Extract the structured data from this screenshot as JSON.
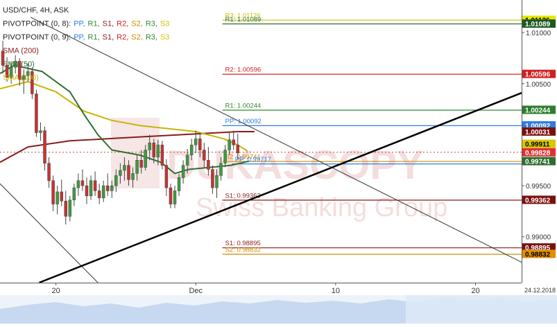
{
  "chart_data": {
    "type": "candlestick",
    "title": "USD/CHF, 4H, ASK",
    "legend": [
      {
        "name": "PIVOTPOINT (0, 8):",
        "items": [
          {
            "label": "PP,",
            "color": "#2d7ee0"
          },
          {
            "label": "R1,",
            "color": "#2e8b2e"
          },
          {
            "label": "S1,",
            "color": "#8b1a1a"
          },
          {
            "label": "R2,",
            "color": "#d02020"
          },
          {
            "label": "S2,",
            "color": "#d08a00"
          },
          {
            "label": "R3,",
            "color": "#2e8b2e"
          },
          {
            "label": "S3",
            "color": "#d6c000"
          }
        ]
      },
      {
        "name": "PIVOTPOINT (0, 9):",
        "items": [
          {
            "label": "PP,",
            "color": "#2d7ee0"
          },
          {
            "label": "R1,",
            "color": "#2e8b2e"
          },
          {
            "label": "S1,",
            "color": "#8b1a1a"
          },
          {
            "label": "R2,",
            "color": "#d02020"
          },
          {
            "label": "S2,",
            "color": "#d08a00"
          },
          {
            "label": "R3,",
            "color": "#2e8b2e"
          },
          {
            "label": "S3",
            "color": "#d6c000"
          }
        ]
      },
      {
        "name": "SMA (200)",
        "color": "#8b1a1a"
      },
      {
        "name": "SMA (50)",
        "color": "#2e6e2e"
      },
      {
        "name": "SMA (100)",
        "color": "#c8b400"
      }
    ],
    "watermark": {
      "line1": "DUKASCOPY",
      "line2": "Swiss Banking Group"
    },
    "x_ticks": [
      {
        "label": "20",
        "day": 20
      },
      {
        "label": "Dec",
        "day": 30
      },
      {
        "label": "10",
        "day": 40
      },
      {
        "label": "20",
        "day": 50
      }
    ],
    "x_range": [
      16,
      53.3
    ],
    "x_end_date": "24.12.2018",
    "y_range": [
      0.9855,
      1.0132
    ],
    "y_ticks": [
      {
        "label": "1.01000",
        "value": 1.01
      },
      {
        "label": "1.00500",
        "value": 1.005
      },
      {
        "label": "0.99500",
        "value": 0.995
      },
      {
        "label": "0.99000",
        "value": 0.99
      }
    ],
    "pivot_levels": [
      {
        "label": "R3: 1.01126",
        "value": 1.01126,
        "color": "#c8c000",
        "x_start": 31.9
      },
      {
        "label": "R1: 1.01089",
        "value": 1.01089,
        "color": "#2e6e2e",
        "x_start": 31.9
      },
      {
        "label": "R2: 1.00596",
        "value": 1.00596,
        "color": "#d02020",
        "x_start": 31.9
      },
      {
        "label": "R1: 1.00244",
        "value": 1.00244,
        "color": "#2e8b2e",
        "x_start": 31.9
      },
      {
        "label": "PP: 1.00092",
        "value": 1.00092,
        "color": "#2d7ee0",
        "x_start": 31.9
      },
      {
        "label": "S2: 0.99741",
        "value": 0.99741,
        "color": "#d08a00",
        "x_start": 31.9
      },
      {
        "label": "PP: 0.99717",
        "value": 0.99717,
        "color": "#2d7ee0",
        "x_start": 32.6
      },
      {
        "label": "S1: 0.99362",
        "value": 0.99362,
        "color": "#8b1a1a",
        "x_start": 31.9
      },
      {
        "label": "S1: 0.98895",
        "value": 0.98895,
        "color": "#8b1a1a",
        "x_start": 31.9
      },
      {
        "label": "S2: 0.98832",
        "value": 0.98832,
        "color": "#d08a00",
        "x_start": 31.9
      }
    ],
    "price_badges": [
      {
        "label": "1.01126",
        "value": 1.01126,
        "bg": "#e6e600",
        "fg": "#000000"
      },
      {
        "label": "1.01089",
        "value": 1.01089,
        "bg": "#1f5a1f",
        "fg": "#ffffff"
      },
      {
        "label": "1.00596",
        "value": 1.00596,
        "bg": "#d02020",
        "fg": "#ffffff"
      },
      {
        "label": "1.00244",
        "value": 1.00244,
        "bg": "#2e7d2e",
        "fg": "#ffffff"
      },
      {
        "label": "1.00092",
        "value": 1.00092,
        "bg": "#2d7ee0",
        "fg": "#ffffff"
      },
      {
        "label": "1.00031",
        "value": 1.00031,
        "bg": "#7a1010",
        "fg": "#ffffff"
      },
      {
        "label": "0.99911",
        "value": 0.99911,
        "bg": "#d8c800",
        "fg": "#000000"
      },
      {
        "label": "0.99828",
        "value": 0.99828,
        "bg": "#e03030",
        "fg": "#ffffff"
      },
      {
        "label": "0.99741",
        "value": 0.99741,
        "bg": "#2e6e2e",
        "fg": "#ffffff"
      },
      {
        "label": "0.99362",
        "value": 0.99362,
        "bg": "#7a1010",
        "fg": "#ffffff"
      },
      {
        "label": "0.98895",
        "value": 0.98895,
        "bg": "#7a1010",
        "fg": "#ffffff"
      },
      {
        "label": "0.98832",
        "value": 0.98832,
        "bg": "#e09000",
        "fg": "#000000"
      }
    ],
    "current_price": 0.99828,
    "trend_lines": [
      {
        "name": "descending-channel-upper",
        "points": [
          [
            18.2,
            1.0115
          ],
          [
            53.3,
            0.9875
          ]
        ],
        "width": 1,
        "color": "#333333"
      },
      {
        "name": "descending-channel-lower",
        "points": [
          [
            16.0,
            0.9952
          ],
          [
            23.0,
            0.9855
          ]
        ],
        "width": 1,
        "color": "#333333"
      },
      {
        "name": "ascending-support",
        "points": [
          [
            18.8,
            0.9855
          ],
          [
            53.3,
            1.0041
          ]
        ],
        "width": 2.5,
        "color": "#000000"
      }
    ],
    "sma": [
      {
        "name": "SMA (200)",
        "color": "#8b1a1a",
        "points": [
          [
            16.0,
            0.9973
          ],
          [
            18.0,
            0.9988
          ],
          [
            21.0,
            0.9994
          ],
          [
            25.0,
            0.9997
          ],
          [
            29.0,
            1.0
          ],
          [
            33.0,
            1.0003
          ],
          [
            34.2,
            1.0003
          ]
        ]
      },
      {
        "name": "SMA (100)",
        "color": "#c8b400",
        "points": [
          [
            16.0,
            1.0045
          ],
          [
            18.0,
            1.0052
          ],
          [
            20.0,
            1.0042
          ],
          [
            22.0,
            1.0023
          ],
          [
            24.0,
            1.0014
          ],
          [
            26.0,
            1.0009
          ],
          [
            28.0,
            1.0006
          ],
          [
            30.0,
            1.0003
          ],
          [
            32.0,
            0.9996
          ],
          [
            33.0,
            0.999
          ],
          [
            33.7,
            0.9984
          ]
        ]
      },
      {
        "name": "SMA (50)",
        "color": "#2e6e2e",
        "points": [
          [
            16.0,
            1.006
          ],
          [
            17.0,
            1.0068
          ],
          [
            19.0,
            1.0062
          ],
          [
            21.0,
            1.0042
          ],
          [
            22.0,
            1.002
          ],
          [
            23.0,
            1.0
          ],
          [
            24.0,
            0.9985
          ],
          [
            26.0,
            0.998
          ],
          [
            27.5,
            0.9973
          ],
          [
            28.5,
            0.9962
          ],
          [
            29.5,
            0.9966
          ],
          [
            31.0,
            0.9968
          ],
          [
            32.5,
            0.997
          ],
          [
            33.8,
            0.9974
          ]
        ]
      }
    ],
    "candles": [
      [
        16.2,
        1.0082,
        1.0092,
        1.006,
        1.0068
      ],
      [
        16.5,
        1.0068,
        1.0076,
        1.0052,
        1.0056
      ],
      [
        16.8,
        1.0056,
        1.0072,
        1.005,
        1.0066
      ],
      [
        17.1,
        1.0066,
        1.0078,
        1.006,
        1.0072
      ],
      [
        17.4,
        1.0072,
        1.0075,
        1.0048,
        1.0054
      ],
      [
        17.7,
        1.0054,
        1.0064,
        1.004,
        1.0058
      ],
      [
        18.0,
        1.0058,
        1.007,
        1.0052,
        1.0062
      ],
      [
        18.3,
        1.0062,
        1.0066,
        1.0035,
        1.004
      ],
      [
        18.6,
        1.004,
        1.0044,
        0.9998,
        1.0002
      ],
      [
        18.9,
        1.0002,
        1.0012,
        0.9994,
        1.0004
      ],
      [
        19.2,
        1.0004,
        1.0008,
        0.9965,
        0.9972
      ],
      [
        19.5,
        0.9972,
        0.9978,
        0.9948,
        0.9955
      ],
      [
        19.8,
        0.9955,
        0.996,
        0.9925,
        0.9932
      ],
      [
        20.1,
        0.9932,
        0.995,
        0.9922,
        0.9944
      ],
      [
        20.4,
        0.9944,
        0.9956,
        0.993,
        0.9935
      ],
      [
        20.7,
        0.9935,
        0.9945,
        0.9912,
        0.992
      ],
      [
        21.0,
        0.992,
        0.994,
        0.9915,
        0.9936
      ],
      [
        21.3,
        0.9936,
        0.9952,
        0.993,
        0.9948
      ],
      [
        21.6,
        0.9948,
        0.9962,
        0.994,
        0.9955
      ],
      [
        21.9,
        0.9955,
        0.9966,
        0.9945,
        0.995
      ],
      [
        22.2,
        0.995,
        0.9958,
        0.9932,
        0.994
      ],
      [
        22.5,
        0.994,
        0.996,
        0.9936,
        0.9955
      ],
      [
        22.8,
        0.9955,
        0.9964,
        0.994,
        0.9945
      ],
      [
        23.1,
        0.9945,
        0.9952,
        0.9932,
        0.9938
      ],
      [
        23.4,
        0.9938,
        0.9955,
        0.9934,
        0.995
      ],
      [
        23.7,
        0.995,
        0.9962,
        0.994,
        0.9945
      ],
      [
        24.0,
        0.9945,
        0.9955,
        0.9938,
        0.995
      ],
      [
        24.3,
        0.995,
        0.9966,
        0.9944,
        0.996
      ],
      [
        24.6,
        0.996,
        0.9972,
        0.9952,
        0.9965
      ],
      [
        24.9,
        0.9965,
        0.9978,
        0.9955,
        0.997
      ],
      [
        25.2,
        0.997,
        0.9975,
        0.995,
        0.9956
      ],
      [
        25.5,
        0.9956,
        0.9968,
        0.9948,
        0.9962
      ],
      [
        25.8,
        0.9962,
        0.998,
        0.9955,
        0.9975
      ],
      [
        26.1,
        0.9975,
        0.9985,
        0.9962,
        0.9968
      ],
      [
        26.4,
        0.9968,
        0.999,
        0.9965,
        0.9985
      ],
      [
        26.7,
        0.9985,
        1.0,
        0.9975,
        0.9992
      ],
      [
        27.0,
        0.9992,
        0.9996,
        0.9972,
        0.9978
      ],
      [
        27.3,
        0.9978,
        0.9995,
        0.997,
        0.999
      ],
      [
        27.6,
        0.999,
        0.9994,
        0.9966,
        0.997
      ],
      [
        27.9,
        0.997,
        0.9976,
        0.994,
        0.9948
      ],
      [
        28.2,
        0.9948,
        0.9952,
        0.9928,
        0.9932
      ],
      [
        28.5,
        0.9932,
        0.995,
        0.9928,
        0.9945
      ],
      [
        28.8,
        0.9945,
        0.9962,
        0.994,
        0.9958
      ],
      [
        29.1,
        0.9958,
        0.9975,
        0.9952,
        0.997
      ],
      [
        29.4,
        0.997,
        0.9986,
        0.9962,
        0.998
      ],
      [
        29.7,
        0.998,
        0.9996,
        0.9975,
        0.999
      ],
      [
        30.0,
        0.999,
        1.0004,
        0.9982,
        0.9996
      ],
      [
        30.3,
        0.9996,
        1.0002,
        0.9978,
        0.9985
      ],
      [
        30.6,
        0.9985,
        0.9992,
        0.9968,
        0.9975
      ],
      [
        30.9,
        0.9975,
        0.9988,
        0.996,
        0.9966
      ],
      [
        31.2,
        0.9966,
        0.997,
        0.9942,
        0.9948
      ],
      [
        31.5,
        0.9948,
        0.9966,
        0.9938,
        0.996
      ],
      [
        31.8,
        0.996,
        0.9978,
        0.9955,
        0.9972
      ],
      [
        32.1,
        0.9972,
        0.999,
        0.9968,
        0.9985
      ],
      [
        32.4,
        0.9985,
        1.0002,
        0.998,
        0.9995
      ],
      [
        32.7,
        0.9995,
        1.0004,
        0.9985,
        0.999
      ],
      [
        33.0,
        0.999,
        1.0001,
        0.9976,
        0.9982
      ]
    ]
  }
}
